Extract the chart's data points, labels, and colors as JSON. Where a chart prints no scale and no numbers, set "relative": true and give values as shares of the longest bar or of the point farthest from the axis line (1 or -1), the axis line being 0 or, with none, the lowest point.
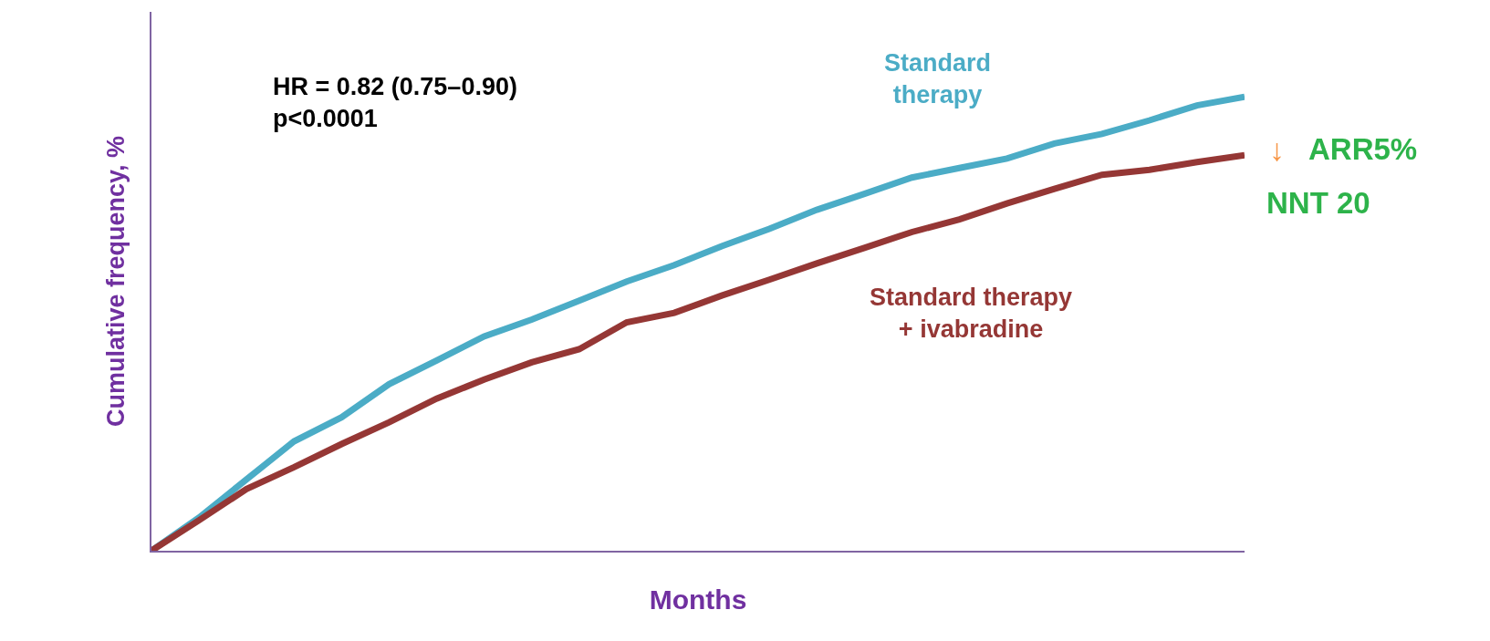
{
  "chart_data": {
    "type": "line",
    "relative": true,
    "xlabel": "Months",
    "ylabel": "Cumulative frequency, %",
    "categories": [
      null,
      null,
      null,
      null,
      null,
      null,
      null,
      null,
      null,
      null,
      null,
      null,
      null,
      null,
      null,
      null,
      null,
      null,
      null,
      null,
      null,
      null,
      null,
      null
    ],
    "series": [
      {
        "name": "Standard therapy",
        "color": "#4bacc6",
        "values": [
          0,
          0.073,
          0.157,
          0.241,
          0.294,
          0.367,
          0.419,
          0.472,
          0.509,
          0.551,
          0.593,
          0.629,
          0.671,
          0.709,
          0.751,
          0.786,
          0.822,
          0.843,
          0.864,
          0.897,
          0.918,
          0.948,
          0.981,
          1
        ]
      },
      {
        "name": "Standard therapy + ivabradine",
        "color": "#953735",
        "values": [
          0,
          0.067,
          0.136,
          0.184,
          0.235,
          0.283,
          0.335,
          0.377,
          0.415,
          0.444,
          0.503,
          0.524,
          0.562,
          0.597,
          0.633,
          0.667,
          0.702,
          0.73,
          0.765,
          0.797,
          0.828,
          0.839,
          0.856,
          0.871
        ]
      }
    ],
    "annotations": [
      "HR = 0.82 (0.75–0.90)\np<0.0001",
      "↓",
      "ARR5%",
      "NNT 20"
    ],
    "legend": false,
    "marker": "none",
    "line_style": "solid"
  }
}
